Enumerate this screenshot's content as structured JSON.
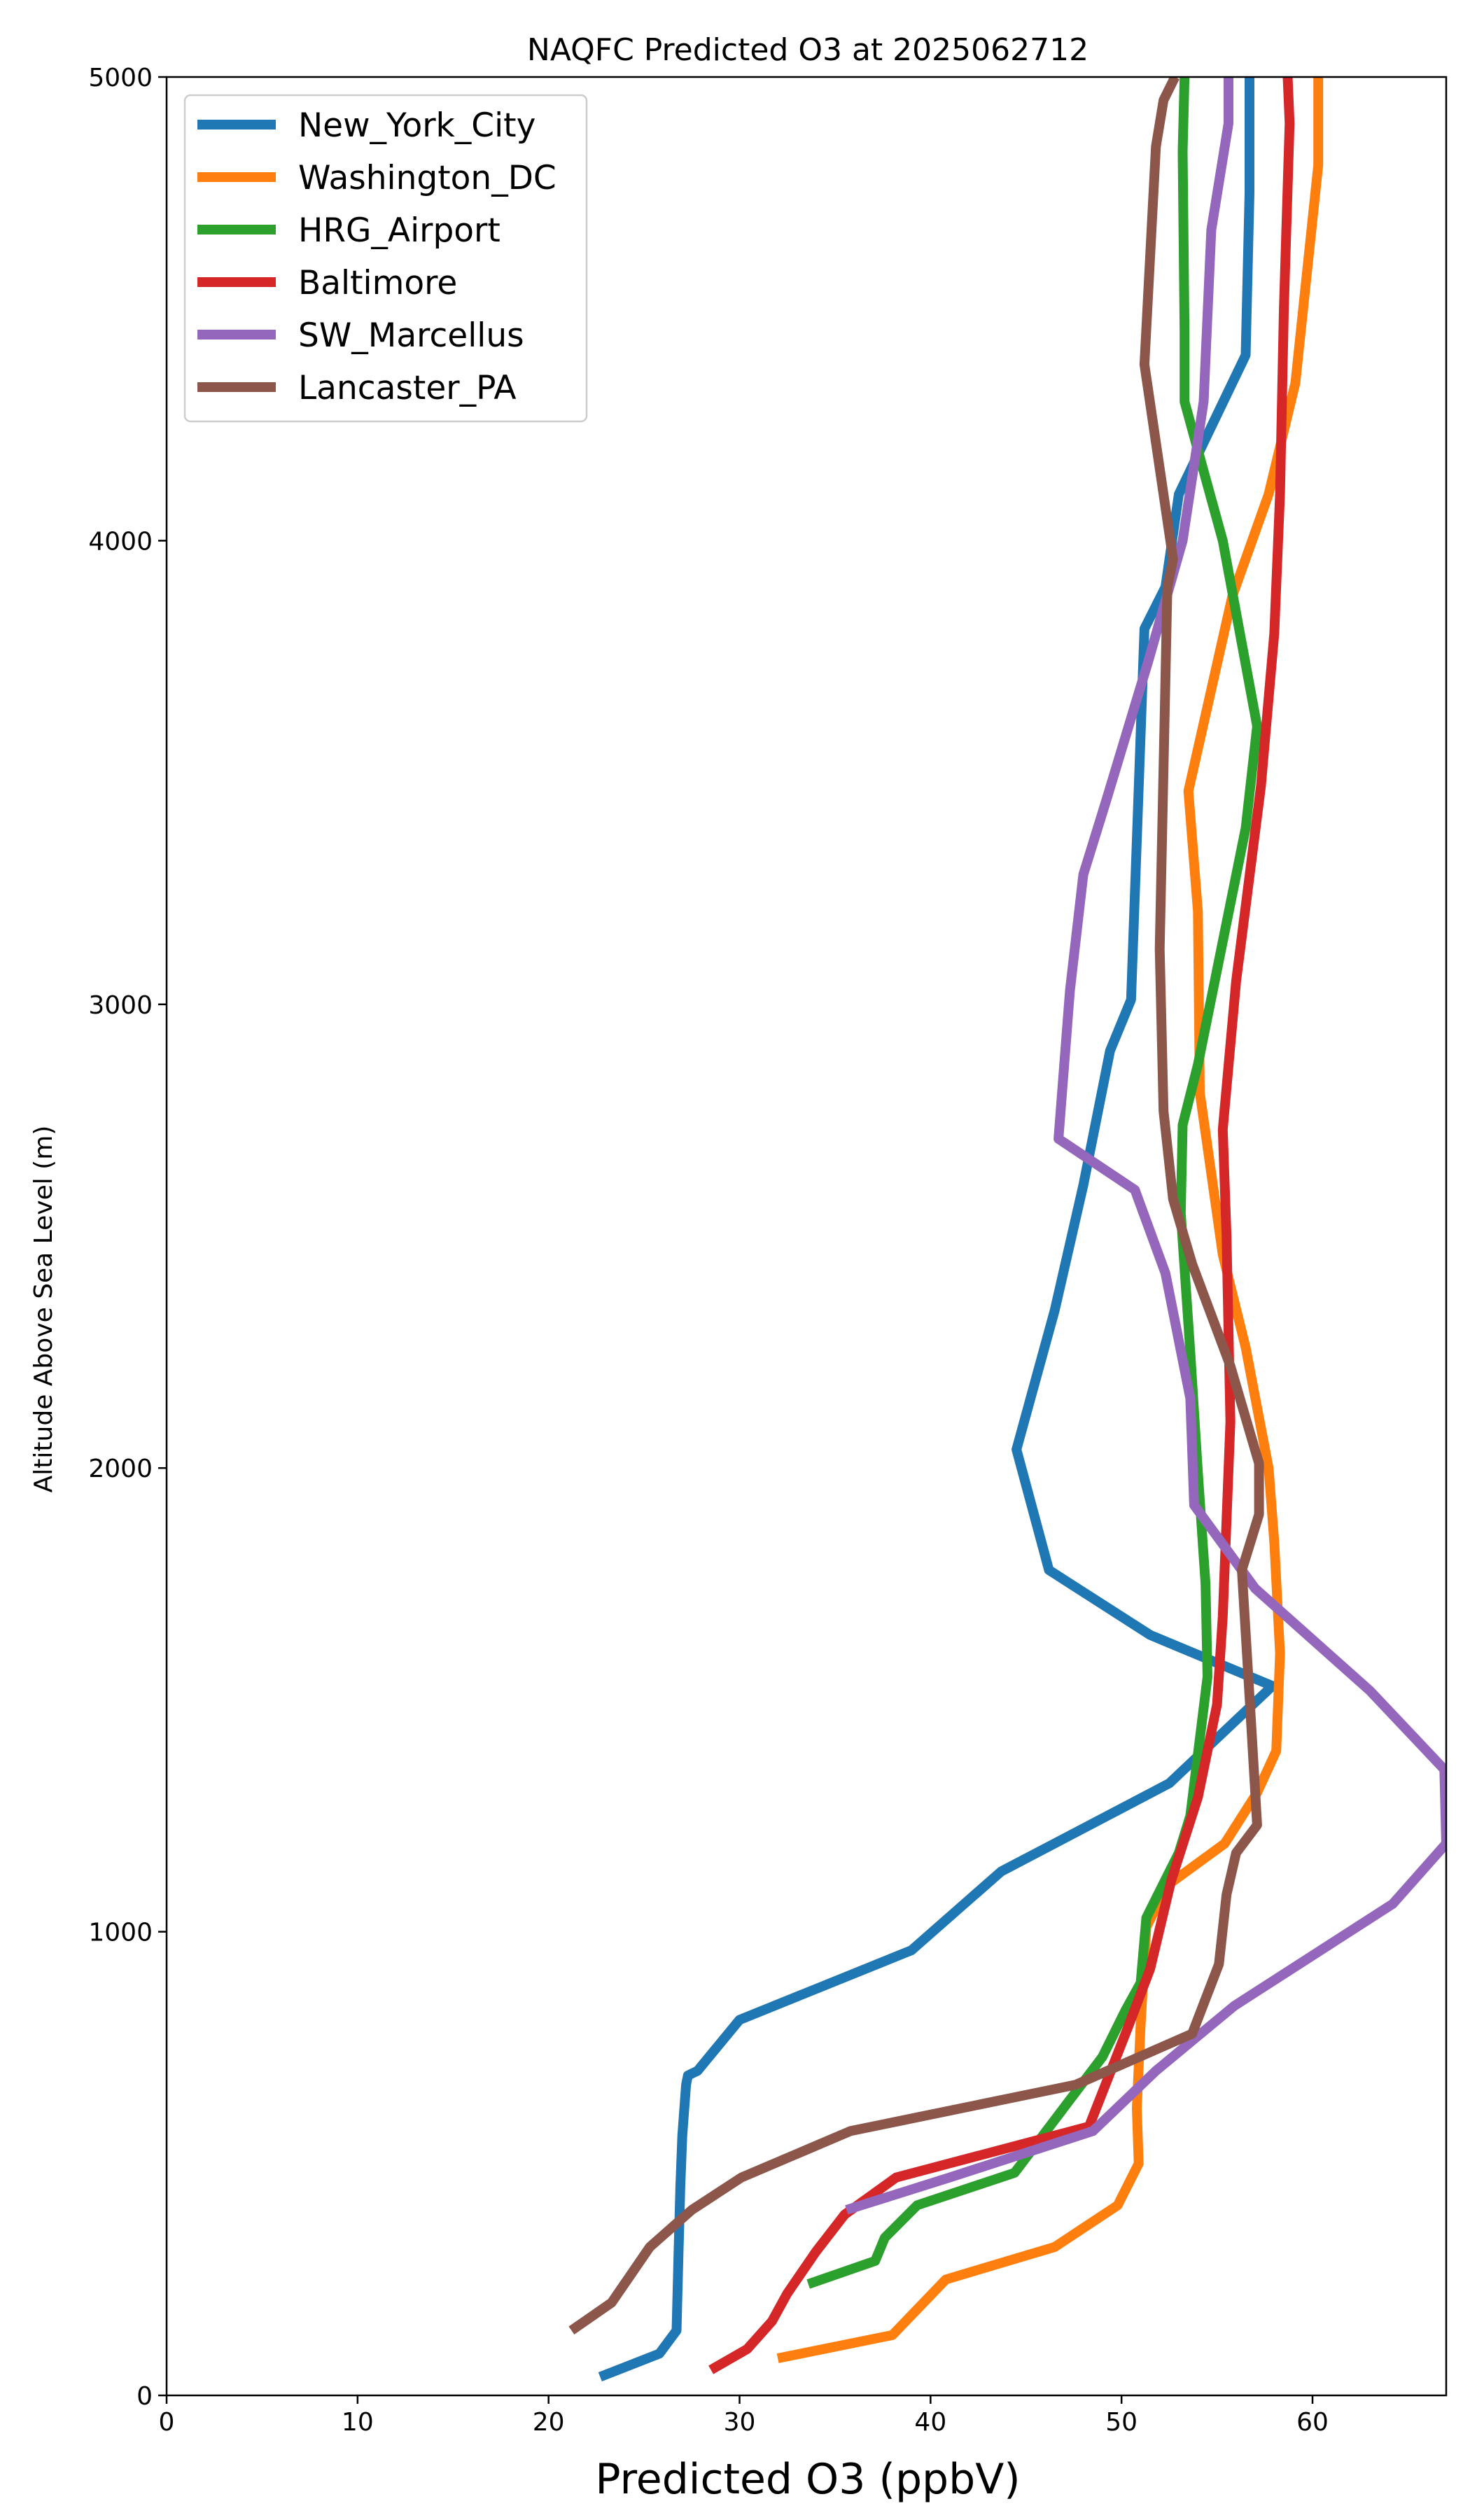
{
  "chart_data": {
    "type": "line",
    "title": "NAQFC Predicted O3 at 2025062712",
    "xlabel": "Predicted O3 (ppbV)",
    "ylabel": "Altitude Above Sea Level (m)",
    "xlim": [
      0,
      67
    ],
    "ylim": [
      0,
      5000
    ],
    "x_ticks": [
      "0",
      "10",
      "20",
      "30",
      "40",
      "50",
      "60"
    ],
    "y_ticks": [
      "0",
      "1000",
      "2000",
      "3000",
      "4000",
      "5000"
    ],
    "grid": false,
    "legend_position": "top-left",
    "series": [
      {
        "name": "New_York_City",
        "color": "#1f77b4",
        "x": [
          22.7,
          25.8,
          26.7,
          26.8,
          26.9,
          27.0,
          27.2,
          27.3,
          27.8,
          30.0,
          39.0,
          43.7,
          52.5,
          57.9,
          51.5,
          46.2,
          44.5,
          46.5,
          48.0,
          49.4,
          50.5,
          51.2,
          52.3,
          53.0,
          56.5,
          56.7,
          56.7
        ],
        "y": [
          40,
          90,
          140,
          300,
          450,
          560,
          670,
          690,
          700,
          810,
          960,
          1130,
          1320,
          1530,
          1640,
          1780,
          2040,
          2340,
          2610,
          2900,
          3010,
          3810,
          3900,
          4100,
          4400,
          4750,
          5000
        ]
      },
      {
        "name": "Washington_DC",
        "color": "#ff7f0e",
        "x": [
          32.0,
          38.0,
          40.8,
          46.5,
          49.8,
          50.9,
          50.8,
          51.0,
          51.3,
          52.4,
          55.4,
          57.1,
          58.1,
          58.3,
          58.0,
          57.7,
          56.5,
          55.3,
          54.1,
          54.0,
          53.5,
          55.8,
          57.7,
          59.1,
          60.3,
          60.3
        ],
        "y": [
          80,
          130,
          250,
          320,
          410,
          500,
          620,
          800,
          1010,
          1100,
          1190,
          1300,
          1390,
          1600,
          1840,
          2000,
          2260,
          2460,
          2810,
          3200,
          3460,
          3880,
          4100,
          4340,
          4810,
          5000
        ]
      },
      {
        "name": "HRG_Airport",
        "color": "#2ca02c",
        "x": [
          33.6,
          37.1,
          37.6,
          39.3,
          44.4,
          49.0,
          50.2,
          51.0,
          51.3,
          53.0,
          53.6,
          54.5,
          54.4,
          54.0,
          53.6,
          53.1,
          53.2,
          54.0,
          56.5,
          57.1,
          55.3,
          53.3,
          53.3,
          53.2,
          53.3
        ],
        "y": [
          240,
          290,
          340,
          410,
          480,
          730,
          830,
          890,
          1030,
          1170,
          1250,
          1550,
          1750,
          1990,
          2250,
          2550,
          2740,
          2870,
          3380,
          3600,
          4000,
          4300,
          4450,
          4840,
          5000
        ]
      },
      {
        "name": "Baltimore",
        "color": "#d62728",
        "x": [
          28.5,
          30.4,
          31.7,
          32.5,
          34.0,
          35.5,
          38.2,
          48.3,
          50.3,
          51.5,
          52.6,
          54.0,
          55.0,
          55.3,
          55.7,
          55.5,
          55.3,
          56.0,
          57.3,
          58.0,
          58.3,
          58.5,
          58.8,
          58.7
        ],
        "y": [
          55,
          100,
          160,
          220,
          310,
          390,
          470,
          580,
          790,
          920,
          1110,
          1290,
          1490,
          1680,
          2100,
          2500,
          2730,
          3050,
          3470,
          3800,
          4100,
          4500,
          4900,
          5000
        ]
      },
      {
        "name": "SW_Marcellus",
        "color": "#9467bd",
        "x": [
          35.6,
          41.0,
          48.5,
          51.8,
          55.9,
          64.2,
          67.0,
          66.9,
          63.0,
          57.0,
          53.8,
          53.6,
          52.3,
          50.7,
          46.7,
          47.3,
          48.0,
          49.2,
          51.4,
          53.2,
          54.3,
          54.7,
          55.6,
          55.6
        ],
        "y": [
          400,
          470,
          570,
          700,
          840,
          1060,
          1190,
          1350,
          1520,
          1740,
          1920,
          2150,
          2420,
          2600,
          2710,
          3030,
          3280,
          3440,
          3740,
          4000,
          4300,
          4670,
          4900,
          5000
        ]
      },
      {
        "name": "Lancaster_PA",
        "color": "#8c564b",
        "x": [
          21.2,
          23.3,
          25.3,
          27.5,
          30.1,
          35.8,
          47.6,
          53.7,
          55.1,
          55.5,
          56.0,
          57.1,
          56.8,
          56.3,
          57.2,
          57.2,
          55.7,
          53.7,
          52.7,
          52.2,
          52.0,
          52.4,
          52.7,
          51.2,
          51.8,
          52.2,
          52.8
        ],
        "y": [
          140,
          200,
          320,
          400,
          470,
          570,
          670,
          780,
          930,
          1080,
          1170,
          1230,
          1440,
          1780,
          1900,
          2010,
          2220,
          2440,
          2580,
          2770,
          3120,
          3900,
          3960,
          4380,
          4850,
          4950,
          5000
        ]
      }
    ]
  }
}
